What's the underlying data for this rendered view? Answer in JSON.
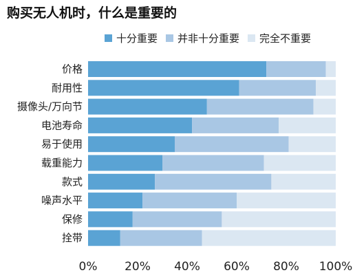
{
  "chart_data": {
    "type": "bar",
    "orientation": "horizontal",
    "stacked": true,
    "title": "购买无人机时，什么是重要的",
    "categories": [
      "价格",
      "耐用性",
      "摄像头/万向节",
      "电池寿命",
      "易于使用",
      "载重能力",
      "款式",
      "噪声水平",
      "保修",
      "拴带"
    ],
    "series": [
      {
        "name": "十分重要",
        "color": "#5aa3d4",
        "values": [
          72,
          61,
          48,
          42,
          35,
          30,
          27,
          22,
          18,
          13
        ]
      },
      {
        "name": "并非十分重要",
        "color": "#a9c7e4",
        "values": [
          24,
          31,
          43,
          35,
          46,
          41,
          47,
          38,
          36,
          33
        ]
      },
      {
        "name": "完全不重要",
        "color": "#dbe7f2",
        "values": [
          4,
          8,
          9,
          23,
          19,
          29,
          26,
          40,
          46,
          54
        ]
      }
    ],
    "xlim": [
      0,
      100
    ],
    "xticks": [
      "0%",
      "20%",
      "40%",
      "60%",
      "80%",
      "100%"
    ],
    "legend_position": "top",
    "grid": false
  }
}
